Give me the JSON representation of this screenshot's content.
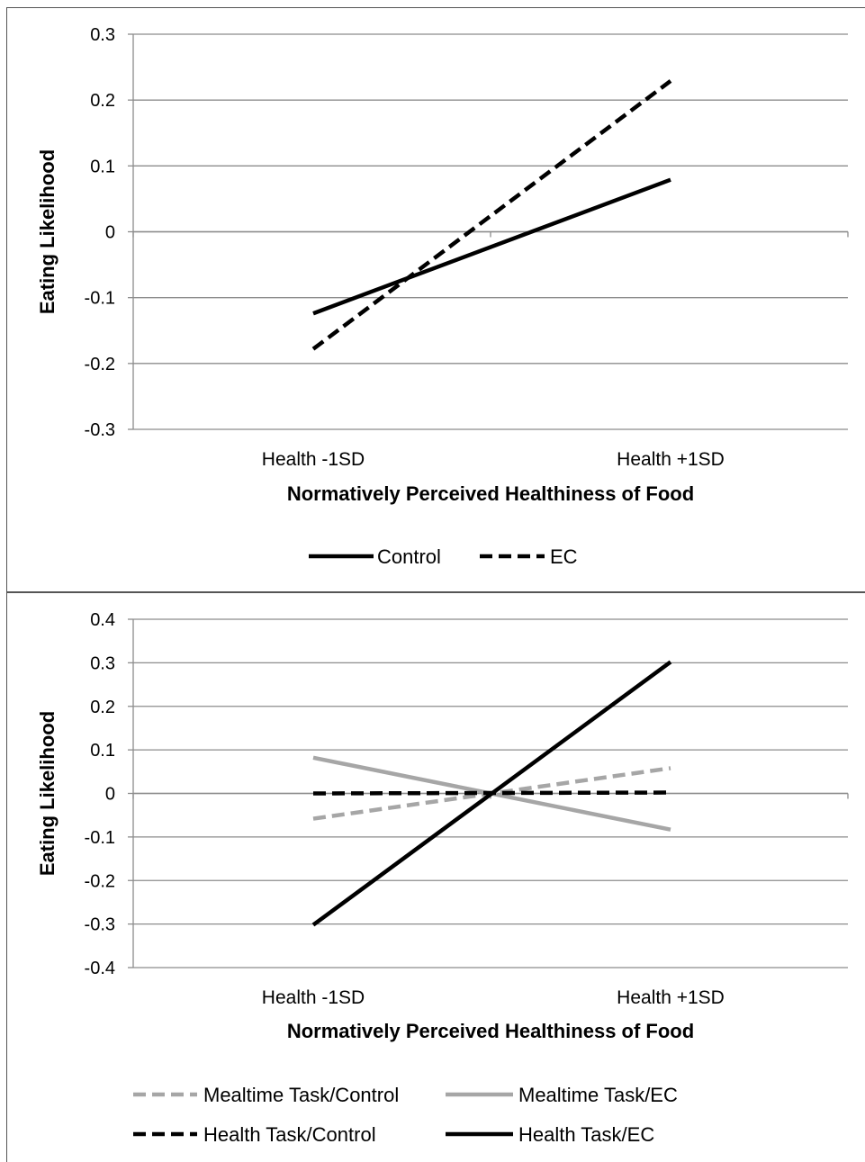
{
  "chart_data": [
    {
      "type": "line",
      "categories": [
        "Health -1SD",
        "Health +1SD"
      ],
      "xlabel": "Normatively Perceived Healthiness of Food",
      "ylabel": "Eating  Likelihood",
      "ylim": [
        -0.3,
        0.3
      ],
      "yticks": [
        "0.3",
        "0.2",
        "0.1",
        "0",
        "-0.1",
        "-0.2",
        "-0.3"
      ],
      "grid": true,
      "legend_position": "bottom",
      "series": [
        {
          "name": "Control",
          "values": [
            -0.124,
            0.079
          ],
          "color": "#000000",
          "dash": "solid"
        },
        {
          "name": "EC",
          "values": [
            -0.178,
            0.229
          ],
          "color": "#000000",
          "dash": "dashed"
        }
      ]
    },
    {
      "type": "line",
      "categories": [
        "Health -1SD",
        "Health +1SD"
      ],
      "xlabel": "Normatively Perceived Healthiness of Food",
      "ylabel": "Eating Likelihood",
      "ylim": [
        -0.4,
        0.4
      ],
      "yticks": [
        "0.4",
        "0.3",
        "0.2",
        "0.1",
        "0",
        "-0.1",
        "-0.2",
        "-0.3",
        "-0.4"
      ],
      "grid": true,
      "legend_position": "bottom",
      "series": [
        {
          "name": "Mealtime Task/Control",
          "values": [
            -0.058,
            0.058
          ],
          "color": "#a6a6a6",
          "dash": "dashed"
        },
        {
          "name": "Mealtime Task/EC",
          "values": [
            0.082,
            -0.083
          ],
          "color": "#a6a6a6",
          "dash": "solid"
        },
        {
          "name": "Health Task/Control",
          "values": [
            0.0,
            0.002
          ],
          "color": "#000000",
          "dash": "dashed"
        },
        {
          "name": "Health Task/EC",
          "values": [
            -0.302,
            0.302
          ],
          "color": "#000000",
          "dash": "solid"
        }
      ]
    }
  ]
}
